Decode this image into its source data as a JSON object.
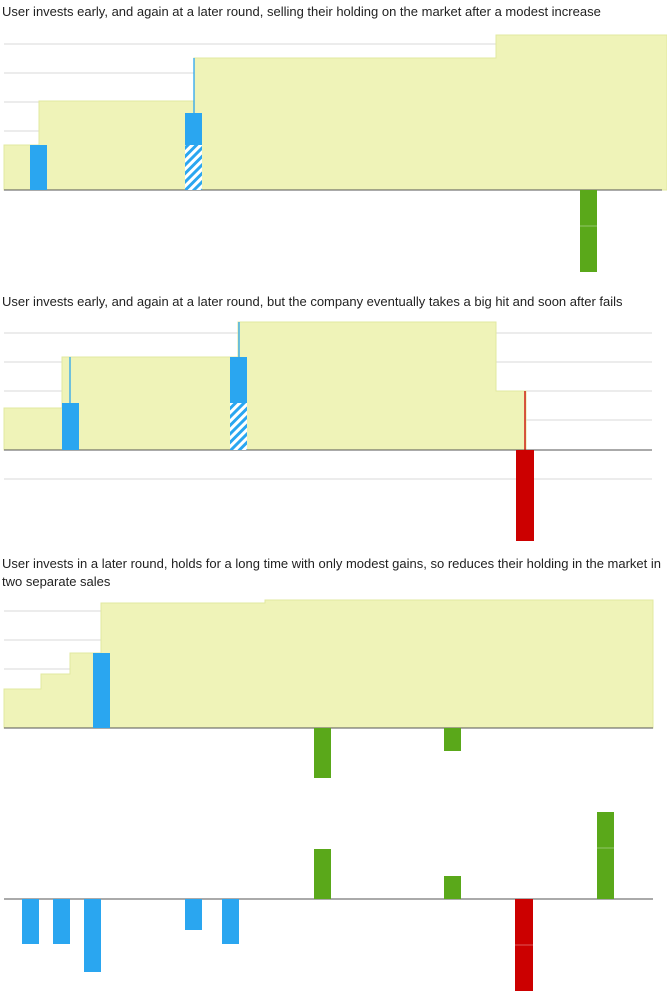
{
  "panels": [
    {
      "caption": "User invests early, and again at a later round, selling their holding on the market after a modest increase"
    },
    {
      "caption": "User invests early, and again at a later round, but the company eventually takes a big hit and soon after fails"
    },
    {
      "caption": "User invests in a later round, holds for a long time with only modest gains, so reduces their holding in the market in two separate sales"
    }
  ],
  "colors": {
    "valuation_fill": "#eff3b8",
    "valuation_stroke": "#e2e8a0",
    "investment": "#2aa6f0",
    "sale": "#5aa81a",
    "loss": "#cc0000",
    "gridline": "#d8d8d8",
    "baseline": "#555555"
  },
  "icons": {
    "investment": "blue-bar",
    "secondary_investment": "hatched-blue-bar",
    "sale": "green-bar",
    "failure": "red-bar"
  }
}
